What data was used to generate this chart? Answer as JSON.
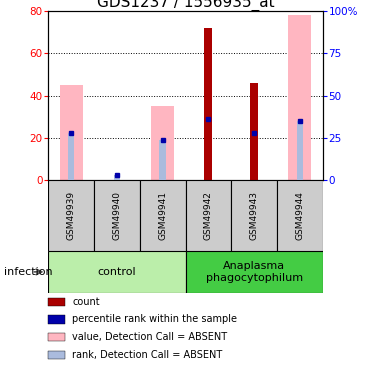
{
  "title": "GDS1237 / 1556935_at",
  "samples": [
    "GSM49939",
    "GSM49940",
    "GSM49941",
    "GSM49942",
    "GSM49943",
    "GSM49944"
  ],
  "count_values": [
    0,
    0,
    0,
    72,
    46,
    0
  ],
  "percentile_rank_values": [
    28,
    3,
    24,
    36,
    28,
    35
  ],
  "value_absent": [
    45,
    0,
    35,
    0,
    0,
    78
  ],
  "rank_absent": [
    28,
    3,
    24,
    0,
    0,
    35
  ],
  "ylim": [
    0,
    80
  ],
  "y2lim": [
    0,
    100
  ],
  "yticks": [
    0,
    20,
    40,
    60,
    80
  ],
  "y2ticks": [
    0,
    25,
    50,
    75,
    100
  ],
  "y2ticklabels": [
    "0",
    "25",
    "50",
    "75",
    "100%"
  ],
  "count_color": "#AA0000",
  "percentile_color": "#0000AA",
  "value_absent_color": "#FFB6C1",
  "rank_absent_color": "#AABBDD",
  "group_colors": [
    "#BBEEAA",
    "#44CC44"
  ],
  "group_ranges": [
    [
      0,
      2
    ],
    [
      3,
      5
    ]
  ],
  "group_labels": [
    "control",
    "Anaplasma\nphagocytophilum"
  ],
  "legend_labels": [
    "count",
    "percentile rank within the sample",
    "value, Detection Call = ABSENT",
    "rank, Detection Call = ABSENT"
  ],
  "legend_colors": [
    "#AA0000",
    "#0000AA",
    "#FFB6C1",
    "#AABBDD"
  ],
  "infection_label": "infection",
  "title_fontsize": 11
}
